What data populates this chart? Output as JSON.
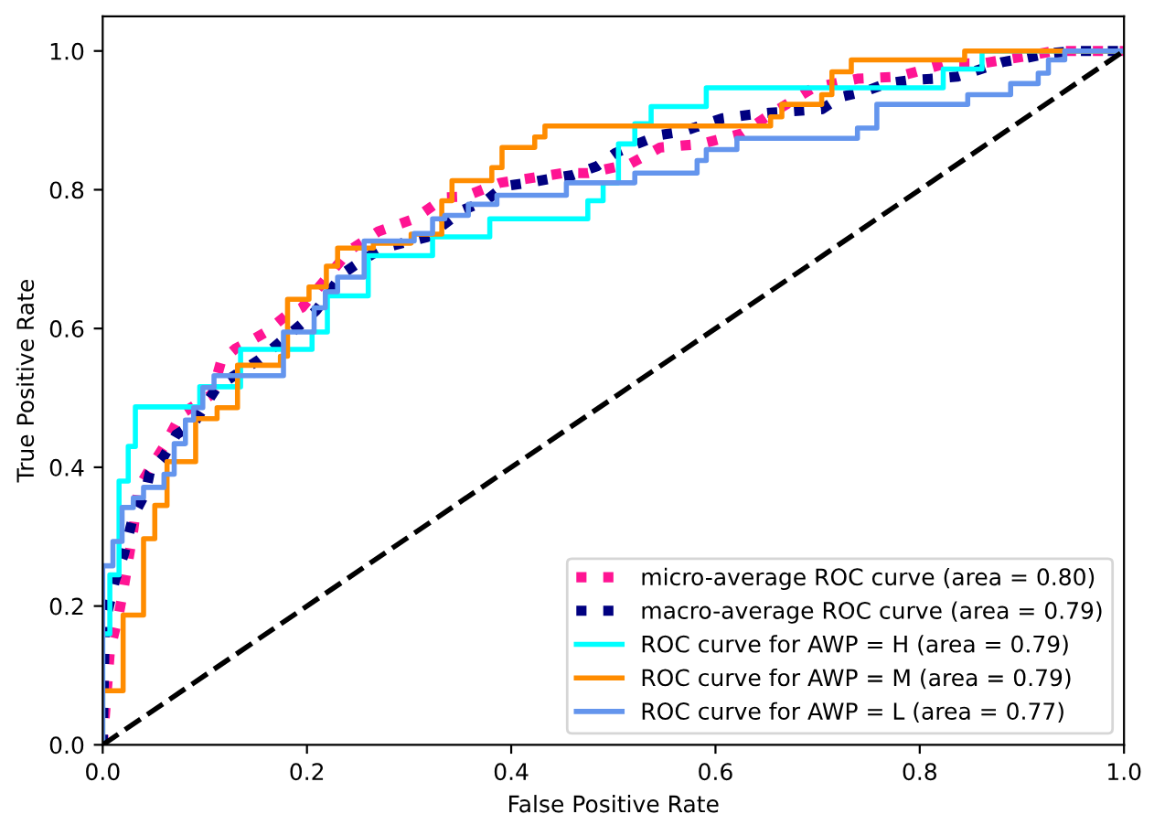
{
  "chart_data": {
    "type": "line",
    "xlabel": "False Positive Rate",
    "ylabel": "True Positive Rate",
    "xlim": [
      0,
      1
    ],
    "ylim": [
      0,
      1.05
    ],
    "xticks": [
      {
        "value": 0,
        "label": "0.0"
      },
      {
        "value": 0.2,
        "label": "0.2"
      },
      {
        "value": 0.4,
        "label": "0.4"
      },
      {
        "value": 0.6,
        "label": "0.6"
      },
      {
        "value": 0.8,
        "label": "0.8"
      },
      {
        "value": 1,
        "label": "1.0"
      }
    ],
    "yticks": [
      {
        "value": 0,
        "label": "0.0"
      },
      {
        "value": 0.2,
        "label": "0.2"
      },
      {
        "value": 0.4,
        "label": "0.4"
      },
      {
        "value": 0.6,
        "label": "0.6"
      },
      {
        "value": 0.8,
        "label": "0.8"
      },
      {
        "value": 1,
        "label": "1.0"
      }
    ],
    "grid": false,
    "legend": "bottom right",
    "marker": "none",
    "series": [
      {
        "name": "micro-average ROC curve (area = 0.80)",
        "color": "#ff1493",
        "line_style": "dotted",
        "x": [
          0,
          0.002,
          0.007,
          0.016,
          0.021,
          0.03,
          0.035,
          0.047,
          0.06,
          0.077,
          0.107,
          0.116,
          0.13,
          0.147,
          0.16,
          0.179,
          0.195,
          0.212,
          0.242,
          0.27,
          0.305,
          0.335,
          0.354,
          0.389,
          0.451,
          0.475,
          0.516,
          0.546,
          0.586,
          0.626,
          0.656,
          0.696,
          0.739,
          0.779,
          0.826,
          0.861,
          0.902,
          0.932,
          1
        ],
        "values": [
          0,
          0.04,
          0.135,
          0.19,
          0.23,
          0.31,
          0.37,
          0.4,
          0.43,
          0.477,
          0.505,
          0.553,
          0.571,
          0.584,
          0.595,
          0.618,
          0.63,
          0.66,
          0.713,
          0.74,
          0.758,
          0.789,
          0.79,
          0.81,
          0.824,
          0.824,
          0.837,
          0.861,
          0.866,
          0.881,
          0.911,
          0.947,
          0.96,
          0.963,
          0.982,
          0.982,
          0.992,
          1,
          1
        ]
      },
      {
        "name": "macro-average ROC curve (area = 0.79)",
        "color": "#000080",
        "line_style": "dotted",
        "x": [
          0,
          0.002,
          0.012,
          0.021,
          0.03,
          0.042,
          0.046,
          0.06,
          0.072,
          0.089,
          0.112,
          0.153,
          0.196,
          0.209,
          0.235,
          0.256,
          0.274,
          0.318,
          0.353,
          0.375,
          0.393,
          0.416,
          0.439,
          0.46,
          0.484,
          0.502,
          0.523,
          0.546,
          0.568,
          0.607,
          0.633,
          0.653,
          0.704,
          0.723,
          0.747,
          0.767,
          0.791,
          0.814,
          0.837,
          0.881,
          0.905,
          0.928,
          0.951,
          1
        ],
        "values": [
          0,
          0.174,
          0.237,
          0.276,
          0.33,
          0.363,
          0.392,
          0.416,
          0.447,
          0.463,
          0.516,
          0.555,
          0.608,
          0.626,
          0.679,
          0.7,
          0.716,
          0.732,
          0.771,
          0.784,
          0.805,
          0.81,
          0.816,
          0.821,
          0.834,
          0.853,
          0.866,
          0.879,
          0.884,
          0.903,
          0.908,
          0.911,
          0.916,
          0.934,
          0.942,
          0.953,
          0.958,
          0.96,
          0.963,
          0.984,
          0.99,
          0.997,
          1,
          1
        ]
      },
      {
        "name": "ROC curve for AWP = H (area = 0.79)",
        "color": "#00ffff",
        "line_style": "solid",
        "x": [
          0,
          0,
          0.007,
          0.007,
          0.016,
          0.016,
          0.025,
          0.025,
          0.032,
          0.032,
          0.095,
          0.095,
          0.135,
          0.135,
          0.205,
          0.205,
          0.22,
          0.22,
          0.26,
          0.26,
          0.323,
          0.323,
          0.379,
          0.379,
          0.475,
          0.475,
          0.49,
          0.49,
          0.505,
          0.505,
          0.521,
          0.521,
          0.537,
          0.537,
          0.591,
          0.591,
          0.823,
          0.823,
          0.861,
          0.861,
          1
        ],
        "values": [
          0,
          0.16,
          0.16,
          0.245,
          0.245,
          0.38,
          0.38,
          0.43,
          0.43,
          0.487,
          0.487,
          0.516,
          0.516,
          0.57,
          0.57,
          0.595,
          0.595,
          0.647,
          0.647,
          0.705,
          0.705,
          0.732,
          0.732,
          0.758,
          0.758,
          0.784,
          0.784,
          0.81,
          0.81,
          0.866,
          0.866,
          0.895,
          0.895,
          0.92,
          0.92,
          0.947,
          0.947,
          0.974,
          0.974,
          1,
          1
        ]
      },
      {
        "name": "ROC curve for AWP = M (area = 0.79)",
        "color": "#ff8c00",
        "line_style": "solid",
        "x": [
          0,
          0,
          0.02,
          0.02,
          0.04,
          0.04,
          0.051,
          0.051,
          0.063,
          0.063,
          0.091,
          0.091,
          0.112,
          0.112,
          0.132,
          0.132,
          0.174,
          0.174,
          0.181,
          0.181,
          0.202,
          0.202,
          0.219,
          0.219,
          0.23,
          0.23,
          0.265,
          0.265,
          0.302,
          0.302,
          0.332,
          0.332,
          0.342,
          0.342,
          0.381,
          0.381,
          0.391,
          0.391,
          0.423,
          0.423,
          0.433,
          0.433,
          0.654,
          0.654,
          0.665,
          0.665,
          0.704,
          0.704,
          0.714,
          0.714,
          0.733,
          0.733,
          0.844,
          0.844,
          1
        ],
        "values": [
          0,
          0.078,
          0.078,
          0.187,
          0.187,
          0.297,
          0.297,
          0.345,
          0.345,
          0.408,
          0.408,
          0.47,
          0.47,
          0.486,
          0.486,
          0.547,
          0.547,
          0.56,
          0.56,
          0.642,
          0.642,
          0.66,
          0.66,
          0.69,
          0.69,
          0.716,
          0.716,
          0.723,
          0.723,
          0.736,
          0.736,
          0.784,
          0.784,
          0.813,
          0.813,
          0.832,
          0.832,
          0.861,
          0.861,
          0.876,
          0.876,
          0.892,
          0.892,
          0.905,
          0.905,
          0.923,
          0.923,
          0.937,
          0.937,
          0.97,
          0.97,
          0.987,
          0.987,
          1,
          1
        ]
      },
      {
        "name": "ROC curve for AWP = L (area = 0.77)",
        "color": "#6495ed",
        "line_style": "solid",
        "x": [
          0,
          0,
          0.01,
          0.01,
          0.019,
          0.019,
          0.03,
          0.03,
          0.04,
          0.04,
          0.06,
          0.06,
          0.07,
          0.07,
          0.081,
          0.081,
          0.089,
          0.089,
          0.098,
          0.098,
          0.109,
          0.109,
          0.177,
          0.177,
          0.207,
          0.207,
          0.218,
          0.218,
          0.23,
          0.23,
          0.256,
          0.256,
          0.305,
          0.305,
          0.323,
          0.323,
          0.335,
          0.335,
          0.358,
          0.358,
          0.386,
          0.386,
          0.454,
          0.454,
          0.521,
          0.521,
          0.582,
          0.582,
          0.591,
          0.591,
          0.621,
          0.621,
          0.739,
          0.739,
          0.758,
          0.758,
          0.847,
          0.847,
          0.889,
          0.889,
          0.916,
          0.916,
          0.926,
          0.926,
          0.942,
          0.942,
          1
        ],
        "values": [
          0,
          0.258,
          0.258,
          0.293,
          0.293,
          0.342,
          0.342,
          0.356,
          0.356,
          0.371,
          0.371,
          0.39,
          0.39,
          0.434,
          0.434,
          0.468,
          0.468,
          0.486,
          0.486,
          0.515,
          0.515,
          0.532,
          0.532,
          0.595,
          0.595,
          0.63,
          0.63,
          0.653,
          0.653,
          0.674,
          0.674,
          0.726,
          0.726,
          0.737,
          0.737,
          0.758,
          0.758,
          0.763,
          0.763,
          0.779,
          0.779,
          0.792,
          0.792,
          0.81,
          0.81,
          0.824,
          0.824,
          0.842,
          0.842,
          0.858,
          0.858,
          0.874,
          0.874,
          0.889,
          0.889,
          0.923,
          0.923,
          0.937,
          0.937,
          0.953,
          0.953,
          0.968,
          0.968,
          0.987,
          0.987,
          1,
          1
        ]
      },
      {
        "color": "#000000",
        "line_style": "dashed",
        "x": [
          0,
          1
        ],
        "values": [
          0,
          1
        ]
      }
    ]
  }
}
